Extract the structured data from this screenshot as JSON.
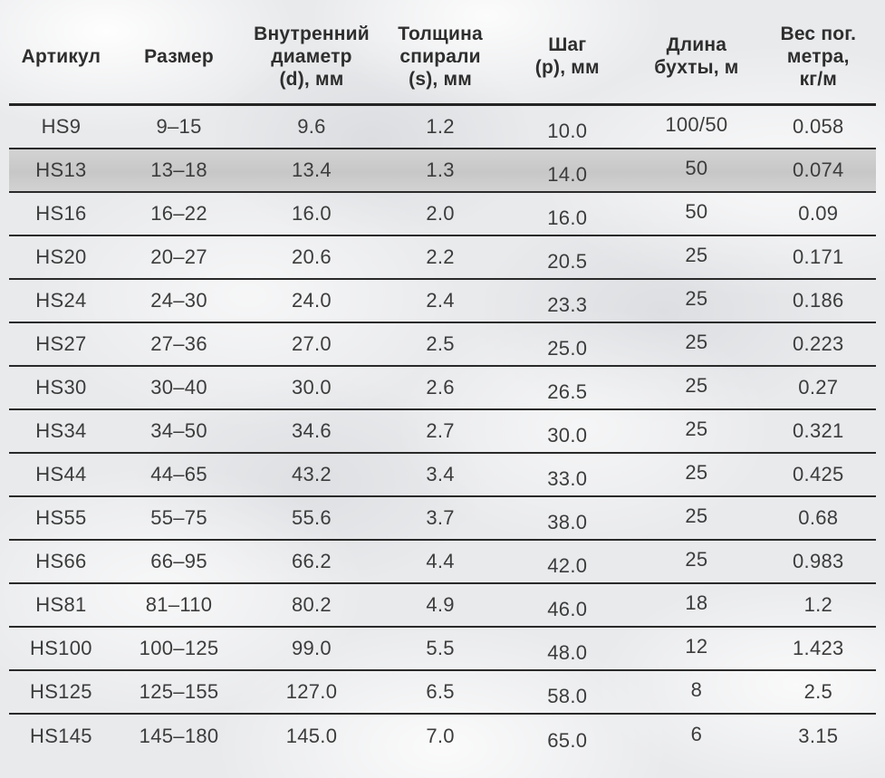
{
  "colors": {
    "background": "#e9eaec",
    "text": "#3c3c3c",
    "header_text": "#2e2e2e",
    "rule_line": "#242424",
    "highlight_row_fill": "#c9c9c9"
  },
  "table": {
    "headers": [
      "Артикул",
      "Размер",
      "Внутренний\nдиаметр\n(d), мм",
      "Толщина\nспирали\n(s), мм",
      "Шаг\n(p), мм",
      "Длина\nбухты, м",
      "Вес пог.\nметра,\nкг/м"
    ],
    "highlighted_row_index": 1,
    "rows": [
      [
        "HS9",
        "9–15",
        "9.6",
        "1.2",
        "10.0",
        "100/50",
        "0.058"
      ],
      [
        "HS13",
        "13–18",
        "13.4",
        "1.3",
        "14.0",
        "50",
        "0.074"
      ],
      [
        "HS16",
        "16–22",
        "16.0",
        "2.0",
        "16.0",
        "50",
        "0.09"
      ],
      [
        "HS20",
        "20–27",
        "20.6",
        "2.2",
        "20.5",
        "25",
        "0.171"
      ],
      [
        "HS24",
        "24–30",
        "24.0",
        "2.4",
        "23.3",
        "25",
        "0.186"
      ],
      [
        "HS27",
        "27–36",
        "27.0",
        "2.5",
        "25.0",
        "25",
        "0.223"
      ],
      [
        "HS30",
        "30–40",
        "30.0",
        "2.6",
        "26.5",
        "25",
        "0.27"
      ],
      [
        "HS34",
        "34–50",
        "34.6",
        "2.7",
        "30.0",
        "25",
        "0.321"
      ],
      [
        "HS44",
        "44–65",
        "43.2",
        "3.4",
        "33.0",
        "25",
        "0.425"
      ],
      [
        "HS55",
        "55–75",
        "55.6",
        "3.7",
        "38.0",
        "25",
        "0.68"
      ],
      [
        "HS66",
        "66–95",
        "66.2",
        "4.4",
        "42.0",
        "25",
        "0.983"
      ],
      [
        "HS81",
        "81–110",
        "80.2",
        "4.9",
        "46.0",
        "18",
        "1.2"
      ],
      [
        "HS100",
        "100–125",
        "99.0",
        "5.5",
        "48.0",
        "12",
        "1.423"
      ],
      [
        "HS125",
        "125–155",
        "127.0",
        "6.5",
        "58.0",
        "8",
        "2.5"
      ],
      [
        "HS145",
        "145–180",
        "145.0",
        "7.0",
        "65.0",
        "6",
        "3.15"
      ]
    ]
  },
  "chart_data": {
    "type": "table",
    "columns": [
      "Артикул",
      "Размер",
      "Внутренний диаметр (d), мм",
      "Толщина спирали (s), мм",
      "Шаг (p), мм",
      "Длина бухты, м",
      "Вес пог. метра, кг/м"
    ],
    "rows": [
      [
        "HS9",
        "9–15",
        9.6,
        1.2,
        10.0,
        "100/50",
        0.058
      ],
      [
        "HS13",
        "13–18",
        13.4,
        1.3,
        14.0,
        "50",
        0.074
      ],
      [
        "HS16",
        "16–22",
        16.0,
        2.0,
        16.0,
        "50",
        0.09
      ],
      [
        "HS20",
        "20–27",
        20.6,
        2.2,
        20.5,
        "25",
        0.171
      ],
      [
        "HS24",
        "24–30",
        24.0,
        2.4,
        23.3,
        "25",
        0.186
      ],
      [
        "HS27",
        "27–36",
        27.0,
        2.5,
        25.0,
        "25",
        0.223
      ],
      [
        "HS30",
        "30–40",
        30.0,
        2.6,
        26.5,
        "25",
        0.27
      ],
      [
        "HS34",
        "34–50",
        34.6,
        2.7,
        30.0,
        "25",
        0.321
      ],
      [
        "HS44",
        "44–65",
        43.2,
        3.4,
        33.0,
        "25",
        0.425
      ],
      [
        "HS55",
        "55–75",
        55.6,
        3.7,
        38.0,
        "25",
        0.68
      ],
      [
        "HS66",
        "66–95",
        66.2,
        4.4,
        42.0,
        "25",
        0.983
      ],
      [
        "HS81",
        "81–110",
        80.2,
        4.9,
        46.0,
        "18",
        1.2
      ],
      [
        "HS100",
        "100–125",
        99.0,
        5.5,
        48.0,
        "12",
        1.423
      ],
      [
        "HS125",
        "125–155",
        127.0,
        6.5,
        58.0,
        "8",
        2.5
      ],
      [
        "HS145",
        "145–180",
        145.0,
        7.0,
        65.0,
        "6",
        3.15
      ]
    ],
    "highlighted_row": "HS13",
    "layout": {
      "grid": "horizontal rules only",
      "header_separator": "thick",
      "legend": "none"
    }
  }
}
